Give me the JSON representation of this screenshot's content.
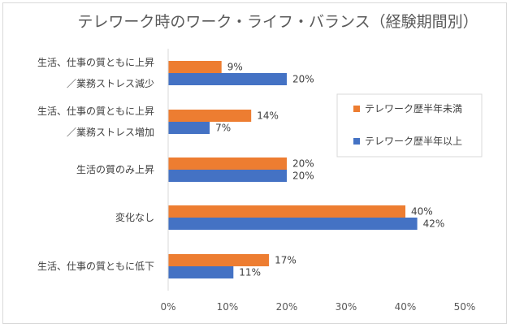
{
  "chart_data": {
    "type": "bar",
    "orientation": "horizontal",
    "title": "テレワーク時のワーク・ライフ・バランス（経験期間別）",
    "categories": [
      [
        "生活、仕事の質ともに上昇",
        "／業務ストレス減少"
      ],
      [
        "生活、仕事の質ともに上昇",
        "／業務ストレス増加"
      ],
      [
        "生活の質のみ上昇"
      ],
      [
        "変化なし"
      ],
      [
        "生活、仕事の質ともに低下"
      ]
    ],
    "series": [
      {
        "name": "テレワーク歴半年未満",
        "color": "#ed7d31",
        "values": [
          9,
          14,
          20,
          40,
          17
        ]
      },
      {
        "name": "テレワーク歴半年以上",
        "color": "#4472c4",
        "values": [
          20,
          7,
          20,
          42,
          11
        ]
      }
    ],
    "xlim": [
      0,
      50
    ],
    "xticks": [
      0,
      10,
      20,
      30,
      40,
      50
    ],
    "value_suffix": "%",
    "grid": false,
    "legend": "right"
  }
}
